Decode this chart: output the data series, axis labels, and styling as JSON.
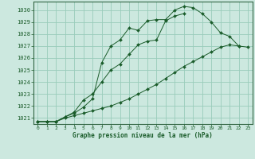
{
  "title": "Graphe pression niveau de la mer (hPa)",
  "background_color": "#cce8df",
  "grid_color": "#99ccbb",
  "line_color": "#1a5c2a",
  "border_color": "#336644",
  "xlim": [
    -0.5,
    23.5
  ],
  "ylim": [
    1020.5,
    1030.7
  ],
  "yticks": [
    1021,
    1022,
    1023,
    1024,
    1025,
    1026,
    1027,
    1028,
    1029,
    1030
  ],
  "xticks": [
    0,
    1,
    2,
    3,
    4,
    5,
    6,
    7,
    8,
    9,
    10,
    11,
    12,
    13,
    14,
    15,
    16,
    17,
    18,
    19,
    20,
    21,
    22,
    23
  ],
  "series1_x": [
    0,
    1,
    2,
    3,
    4,
    5,
    6,
    7,
    8,
    9,
    10,
    11,
    12,
    13,
    14,
    15,
    16,
    17,
    18,
    19,
    20,
    21,
    22
  ],
  "series1_y": [
    1020.7,
    1020.7,
    1020.7,
    1021.1,
    1021.4,
    1021.9,
    1022.6,
    1025.6,
    1027.0,
    1027.5,
    1028.5,
    1028.3,
    1029.1,
    1029.2,
    1029.2,
    1030.0,
    1030.3,
    1030.2,
    1029.7,
    1029.0,
    1028.1,
    1027.8,
    1027.0
  ],
  "series2_x": [
    0,
    1,
    2,
    3,
    4,
    5,
    6,
    7,
    8,
    9,
    10,
    11,
    12,
    13,
    14,
    15,
    16
  ],
  "series2_y": [
    1020.7,
    1020.7,
    1020.7,
    1021.1,
    1021.5,
    1022.5,
    1023.0,
    1024.0,
    1025.0,
    1025.5,
    1026.3,
    1027.1,
    1027.4,
    1027.5,
    1029.1,
    1029.5,
    1029.7
  ],
  "series3_x": [
    0,
    1,
    2,
    3,
    4,
    5,
    6,
    7,
    8,
    9,
    10,
    11,
    12,
    13,
    14,
    15,
    16,
    17,
    18,
    19,
    20,
    21,
    22,
    23
  ],
  "series3_y": [
    1020.7,
    1020.7,
    1020.7,
    1021.0,
    1021.2,
    1021.4,
    1021.6,
    1021.8,
    1022.0,
    1022.3,
    1022.6,
    1023.0,
    1023.4,
    1023.8,
    1024.3,
    1024.8,
    1025.3,
    1025.7,
    1026.1,
    1026.5,
    1026.9,
    1027.1,
    1027.0,
    1026.9
  ]
}
